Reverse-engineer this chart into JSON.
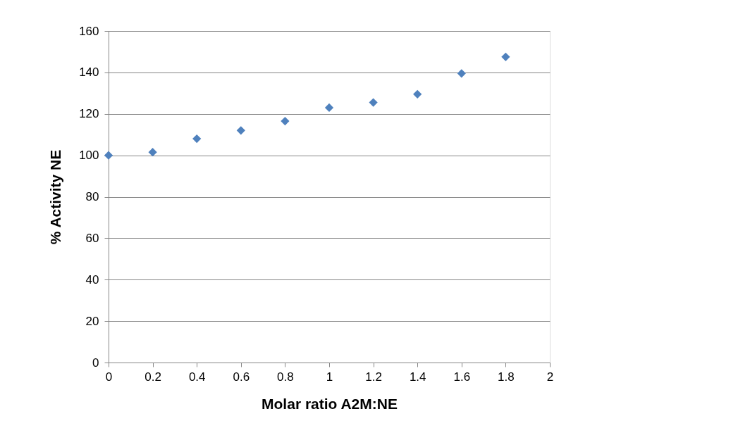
{
  "chart_data": {
    "type": "scatter",
    "xlabel": "Molar ratio A2M:NE",
    "ylabel": "% Activity NE",
    "x": [
      0,
      0.2,
      0.4,
      0.6,
      0.8,
      1,
      1.2,
      1.4,
      1.6,
      1.8
    ],
    "series": [
      {
        "color": "#4f81bd",
        "values": [
          100,
          101.5,
          108,
          112,
          116.5,
          123,
          125.5,
          129.5,
          139.5,
          147.5
        ]
      }
    ],
    "xlim": [
      0,
      2
    ],
    "xticks": [
      0,
      0.2,
      0.4,
      0.6,
      0.8,
      1,
      1.2,
      1.4,
      1.6,
      1.8,
      2
    ],
    "ylim": [
      0,
      160
    ],
    "yticks": [
      0,
      20,
      40,
      60,
      80,
      100,
      120,
      140,
      160
    ],
    "grid": "y",
    "marker": "diamond",
    "legend": false
  }
}
